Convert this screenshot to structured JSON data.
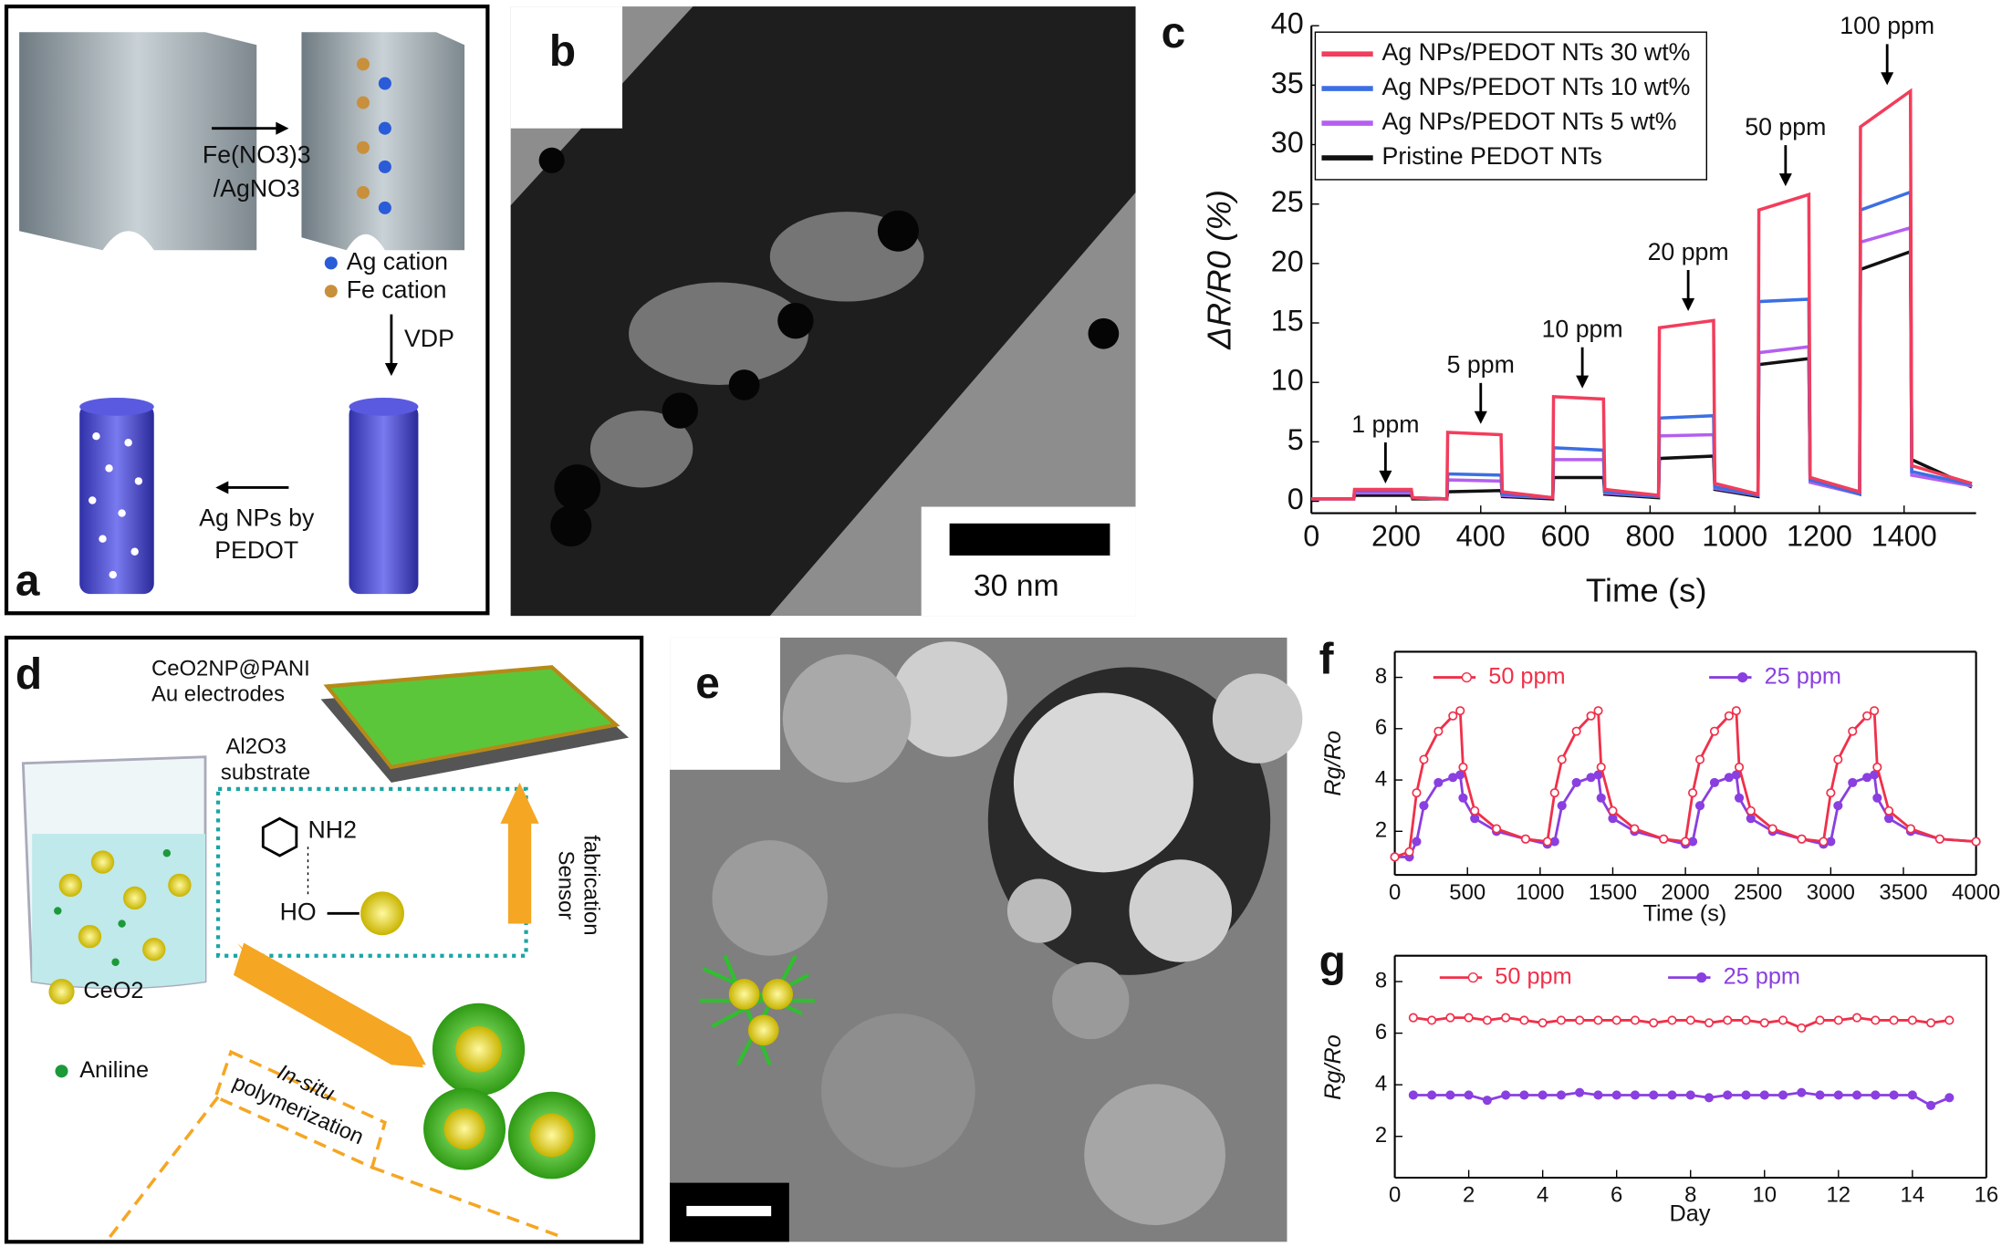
{
  "panels": {
    "a": {
      "label": "a",
      "reagent_top": "Fe(NO3)3",
      "reagent_bottom": "/AgNO3",
      "ag_cation": "Ag cation",
      "fe_cation": "Fe cation",
      "step": "VDP",
      "product_top": "Ag NPs by",
      "product_bottom": "PEDOT"
    },
    "b": {
      "label": "b",
      "scale_bar": "30 nm"
    },
    "c": {
      "label": "c"
    },
    "d": {
      "label": "d",
      "material": "CeO2NP@PANI",
      "electrodes": "Au electrodes",
      "substrate_top": "Al2O3",
      "substrate_bottom": "substrate",
      "amine": "NH2",
      "hydroxyl": "HO",
      "ceo2": "CeO2",
      "aniline": "Aniline",
      "process_top": "In-situ",
      "process_bottom": "polymerization",
      "fabrication_top": "Sensor",
      "fabrication_bottom": "fabrication"
    },
    "e": {
      "label": "e"
    },
    "f": {
      "label": "f"
    },
    "g": {
      "label": "g"
    }
  },
  "chart_data": [
    {
      "type": "line",
      "x_label": "Time (s)",
      "y_label": "ΔR/R0 (%)",
      "frame": "left-bottom",
      "legend": "upper left",
      "xlim": [
        0,
        1570
      ],
      "ylim": [
        -1,
        40
      ],
      "xticks": [
        0,
        200,
        400,
        600,
        800,
        1000,
        1200,
        1400
      ],
      "yticks": [
        0,
        5,
        10,
        15,
        20,
        25,
        30,
        35,
        40
      ],
      "x": [
        0,
        100,
        102,
        236,
        239,
        320,
        322,
        448,
        451,
        570,
        572,
        690,
        693,
        820,
        822,
        950,
        953,
        1055,
        1057,
        1175,
        1178,
        1295,
        1297,
        1415,
        1418,
        1560
      ],
      "series": [
        {
          "name": "Ag NPs/PEDOT NTs 30 wt%",
          "color": "#f23d5c",
          "values": [
            0.2,
            0.2,
            1.0,
            1.0,
            0.3,
            0.2,
            5.8,
            5.6,
            0.8,
            0.3,
            8.8,
            8.6,
            1.0,
            0.5,
            14.6,
            15.2,
            1.5,
            0.6,
            24.5,
            25.8,
            2.0,
            0.8,
            31.5,
            34.5,
            3.0,
            1.5
          ]
        },
        {
          "name": "Ag NPs/PEDOT NTs 10 wt%",
          "color": "#3b6fe3",
          "values": [
            0.2,
            0.2,
            0.9,
            0.9,
            0.3,
            0.2,
            2.3,
            2.2,
            0.6,
            0.3,
            4.5,
            4.3,
            0.8,
            0.4,
            7.0,
            7.2,
            1.2,
            0.5,
            16.8,
            17.0,
            1.8,
            0.6,
            24.5,
            26.0,
            2.5,
            1.4
          ]
        },
        {
          "name": "Ag NPs/PEDOT NTs 5 wt%",
          "color": "#b45ff0",
          "values": [
            0.2,
            0.2,
            0.7,
            0.7,
            0.3,
            0.2,
            1.8,
            1.7,
            0.5,
            0.3,
            3.5,
            3.5,
            0.7,
            0.4,
            5.5,
            5.6,
            1.1,
            0.5,
            12.5,
            13.0,
            1.6,
            0.6,
            21.8,
            23.0,
            2.2,
            1.3
          ]
        },
        {
          "name": "Pristine PEDOT NTs",
          "color": "#111111",
          "values": [
            0.2,
            0.2,
            0.5,
            0.5,
            0.2,
            0.2,
            0.8,
            0.9,
            0.4,
            0.2,
            2.0,
            2.0,
            0.6,
            0.3,
            3.6,
            3.8,
            1.0,
            0.4,
            11.5,
            12.0,
            2.0,
            0.6,
            19.5,
            21.0,
            3.5,
            1.2
          ]
        }
      ],
      "annotations": [
        {
          "text": "1 ppm",
          "x": 175,
          "y": 1.5
        },
        {
          "text": "5 ppm",
          "x": 400,
          "y": 6.5
        },
        {
          "text": "10 ppm",
          "x": 640,
          "y": 9.5
        },
        {
          "text": "20 ppm",
          "x": 890,
          "y": 16
        },
        {
          "text": "50 ppm",
          "x": 1120,
          "y": 26.5
        },
        {
          "text": "100 ppm",
          "x": 1360,
          "y": 35
        }
      ]
    },
    {
      "type": "line",
      "x_label": "Time (s)",
      "y_label": "Rg/Ro",
      "frame": "box",
      "legend": "upper center",
      "xlim": [
        0,
        4000
      ],
      "ylim": [
        0.3,
        9
      ],
      "xticks": [
        0,
        500,
        1000,
        1500,
        2000,
        2500,
        3000,
        3500,
        4000
      ],
      "yticks": [
        2,
        4,
        6,
        8
      ],
      "x": [
        0,
        100,
        150,
        200,
        300,
        400,
        450,
        470,
        550,
        700,
        900,
        1050,
        1100,
        1150,
        1250,
        1350,
        1400,
        1420,
        1500,
        1650,
        1850,
        2000,
        2050,
        2100,
        2200,
        2300,
        2350,
        2370,
        2450,
        2600,
        2800,
        2950,
        3000,
        3050,
        3150,
        3250,
        3300,
        3320,
        3400,
        3550,
        3750,
        4000
      ],
      "series": [
        {
          "name": "50 ppm",
          "color": "#f0304a",
          "marker": "open-circle",
          "values": [
            1.0,
            1.2,
            3.5,
            4.8,
            5.9,
            6.5,
            6.7,
            4.5,
            2.8,
            2.1,
            1.7,
            1.6,
            3.5,
            4.8,
            5.9,
            6.5,
            6.7,
            4.5,
            2.8,
            2.1,
            1.7,
            1.6,
            3.5,
            4.8,
            5.9,
            6.5,
            6.7,
            4.5,
            2.8,
            2.1,
            1.7,
            1.6,
            3.5,
            4.8,
            5.9,
            6.5,
            6.7,
            4.5,
            2.8,
            2.1,
            1.7,
            1.6
          ]
        },
        {
          "name": "25 ppm",
          "color": "#8a3fe0",
          "marker": "filled-circle",
          "values": [
            1.0,
            1.0,
            1.6,
            3.0,
            3.9,
            4.1,
            4.2,
            3.3,
            2.5,
            2.0,
            1.7,
            1.5,
            1.6,
            3.0,
            3.9,
            4.1,
            4.2,
            3.3,
            2.5,
            2.0,
            1.7,
            1.5,
            1.6,
            3.0,
            3.9,
            4.1,
            4.2,
            3.3,
            2.5,
            2.0,
            1.7,
            1.5,
            1.6,
            3.0,
            3.9,
            4.1,
            4.2,
            3.3,
            2.5,
            2.0,
            1.7,
            1.6
          ]
        }
      ]
    },
    {
      "type": "line",
      "x_label": "Day",
      "y_label": "Rg/Ro",
      "frame": "box",
      "legend": "upper center",
      "xlim": [
        0,
        16
      ],
      "ylim": [
        0.4,
        9
      ],
      "xticks": [
        0,
        2,
        4,
        6,
        8,
        10,
        12,
        14,
        16
      ],
      "yticks": [
        2,
        4,
        6,
        8
      ],
      "x": [
        0.5,
        1,
        1.5,
        2,
        2.5,
        3,
        3.5,
        4,
        4.5,
        5,
        5.5,
        6,
        6.5,
        7,
        7.5,
        8,
        8.5,
        9,
        9.5,
        10,
        10.5,
        11,
        11.5,
        12,
        12.5,
        13,
        13.5,
        14,
        14.5,
        15
      ],
      "series": [
        {
          "name": "50 ppm",
          "color": "#f0304a",
          "marker": "open-circle",
          "values": [
            6.6,
            6.5,
            6.6,
            6.6,
            6.5,
            6.6,
            6.5,
            6.4,
            6.5,
            6.5,
            6.5,
            6.5,
            6.5,
            6.4,
            6.5,
            6.5,
            6.4,
            6.5,
            6.5,
            6.4,
            6.5,
            6.2,
            6.5,
            6.5,
            6.6,
            6.5,
            6.5,
            6.5,
            6.4,
            6.5
          ]
        },
        {
          "name": "25 ppm",
          "color": "#8a3fe0",
          "marker": "filled-circle",
          "values": [
            3.6,
            3.6,
            3.6,
            3.6,
            3.4,
            3.6,
            3.6,
            3.6,
            3.6,
            3.7,
            3.6,
            3.6,
            3.6,
            3.6,
            3.6,
            3.6,
            3.5,
            3.6,
            3.6,
            3.6,
            3.6,
            3.7,
            3.6,
            3.6,
            3.6,
            3.6,
            3.6,
            3.6,
            3.2,
            3.5
          ]
        }
      ]
    }
  ]
}
